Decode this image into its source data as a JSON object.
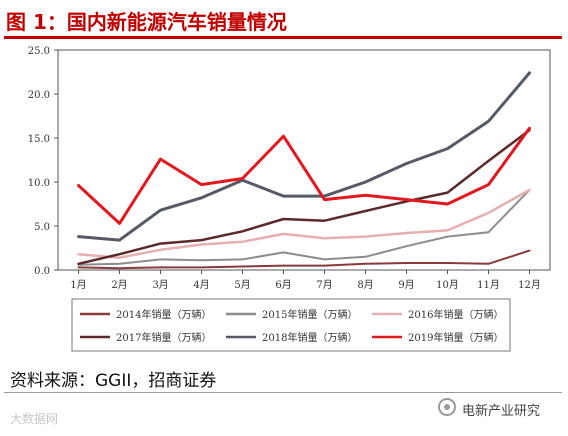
{
  "header": {
    "title": "图 1：国内新能源汽车销量情况"
  },
  "chart_data": {
    "type": "line",
    "categories": [
      "1月",
      "2月",
      "3月",
      "4月",
      "5月",
      "6月",
      "7月",
      "8月",
      "9月",
      "10月",
      "11月",
      "12月"
    ],
    "ylim": [
      0,
      25
    ],
    "yticks": [
      "0.0",
      "5.0",
      "10.0",
      "15.0",
      "20.0",
      "25.0"
    ],
    "grid": false,
    "legend_position": "bottom",
    "series": [
      {
        "name": "2014年销量（万辆）",
        "color": "#8b3a3a",
        "width": 2,
        "values": [
          0.3,
          0.2,
          0.3,
          0.3,
          0.4,
          0.5,
          0.5,
          0.7,
          0.8,
          0.8,
          0.7,
          2.2
        ]
      },
      {
        "name": "2015年销量（万辆）",
        "color": "#8c8c8c",
        "width": 2,
        "values": [
          0.6,
          0.7,
          1.2,
          1.1,
          1.2,
          2.0,
          1.2,
          1.5,
          2.7,
          3.8,
          4.3,
          9.1
        ]
      },
      {
        "name": "2016年销量（万辆）",
        "color": "#e6b0b0",
        "width": 2.5,
        "values": [
          1.8,
          1.4,
          2.3,
          2.9,
          3.2,
          4.1,
          3.6,
          3.8,
          4.2,
          4.5,
          6.5,
          9.1
        ]
      },
      {
        "name": "2017年销量（万辆）",
        "color": "#5c2a2a",
        "width": 2.5,
        "values": [
          0.7,
          1.8,
          3.0,
          3.4,
          4.4,
          5.8,
          5.6,
          6.7,
          7.8,
          8.8,
          12.4,
          15.9
        ]
      },
      {
        "name": "2018年销量（万辆）",
        "color": "#555a66",
        "width": 3,
        "values": [
          3.8,
          3.4,
          6.8,
          8.2,
          10.2,
          8.4,
          8.4,
          10.0,
          12.1,
          13.8,
          16.9,
          22.4
        ]
      },
      {
        "name": "2019年销量（万辆）",
        "color": "#e3181f",
        "width": 3,
        "values": [
          9.6,
          5.3,
          12.6,
          9.7,
          10.4,
          15.2,
          8.0,
          8.5,
          8.0,
          7.5,
          9.7,
          16.1
        ]
      }
    ]
  },
  "footer": {
    "source": "资料来源：GGII，招商证券",
    "watermark_left": "大数据网",
    "watermark_right": "电新产业研究"
  }
}
